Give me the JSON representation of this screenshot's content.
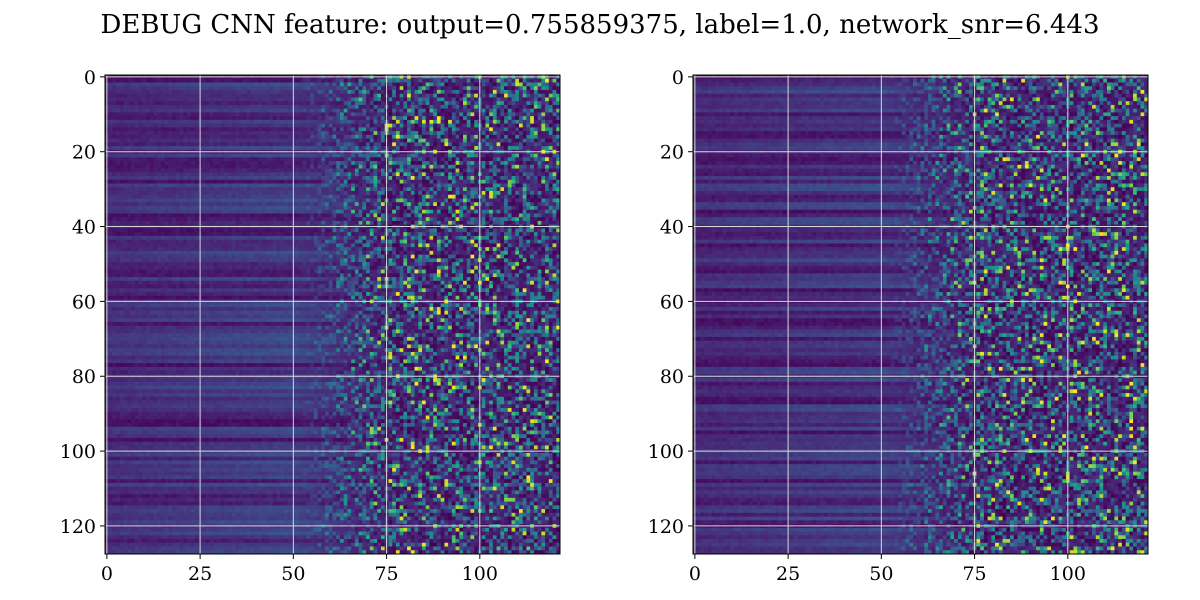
{
  "figure": {
    "title": "DEBUG CNN feature: output=0.755859375, label=1.0, network_snr=6.443"
  },
  "chart_data": [
    {
      "type": "heatmap",
      "name": "left",
      "rows": 128,
      "cols": 122,
      "xlim": [
        -0.5,
        121.5
      ],
      "ylim": [
        127.5,
        -0.5
      ],
      "x_ticks": [
        0,
        25,
        50,
        75,
        100
      ],
      "y_ticks": [
        0,
        20,
        40,
        60,
        80,
        100,
        120
      ],
      "grid": true,
      "colormap": "viridis",
      "seed": 7
    },
    {
      "type": "heatmap",
      "name": "right",
      "rows": 128,
      "cols": 122,
      "xlim": [
        -0.5,
        121.5
      ],
      "ylim": [
        127.5,
        -0.5
      ],
      "x_ticks": [
        0,
        25,
        50,
        75,
        100
      ],
      "y_ticks": [
        0,
        20,
        40,
        60,
        80,
        100,
        120
      ],
      "grid": true,
      "colormap": "viridis",
      "seed": 19
    }
  ],
  "colors": {
    "grid": "#d9d9d9",
    "axis": "#000000",
    "viridis_stops": [
      "#440154",
      "#482475",
      "#414487",
      "#355f8d",
      "#2a788e",
      "#21918c",
      "#22a884",
      "#44bf70",
      "#7ad151",
      "#bddf26",
      "#fde725"
    ]
  }
}
